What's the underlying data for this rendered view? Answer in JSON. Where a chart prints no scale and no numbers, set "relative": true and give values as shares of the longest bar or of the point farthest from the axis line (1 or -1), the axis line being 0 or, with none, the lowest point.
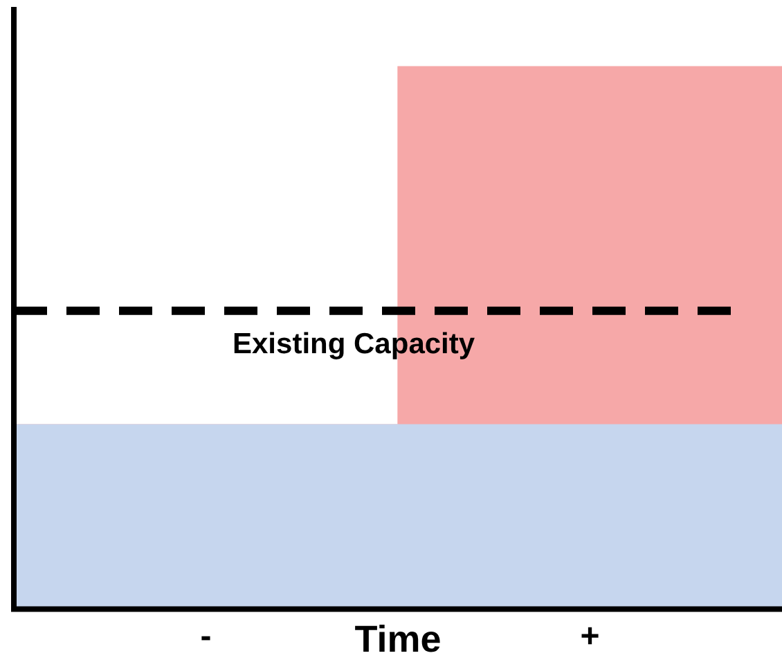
{
  "chart_data": {
    "type": "bar",
    "stacked": true,
    "relative": true,
    "xlabel": "Time",
    "categories": [
      "-",
      "+"
    ],
    "series": [
      {
        "color": "#c6d6ee",
        "values": [
          0.34,
          0.34
        ]
      },
      {
        "color": "#f6a8a8",
        "values": [
          0,
          0.66
        ]
      }
    ],
    "ref_lines": [
      {
        "axis": "y",
        "value": 0.55,
        "label": "Existing Capacity",
        "color": "#000000",
        "line_style": "dashed"
      }
    ],
    "grid": false,
    "legend": false
  }
}
